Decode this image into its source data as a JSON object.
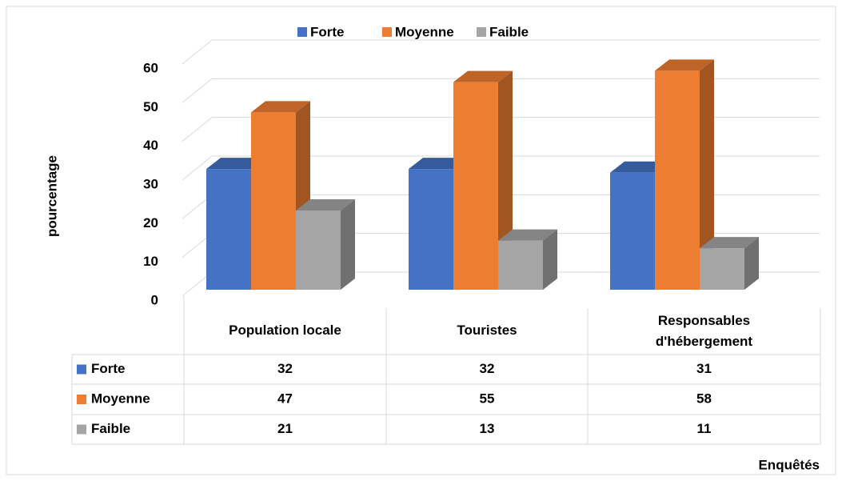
{
  "chart_data": {
    "type": "bar3d",
    "categories": [
      "Population locale",
      "Touristes",
      "Responsables d'hébergement"
    ],
    "series": [
      {
        "name": "Forte",
        "color": "#4472c4",
        "values": [
          32,
          32,
          31
        ]
      },
      {
        "name": "Moyenne",
        "color": "#ed7d31",
        "values": [
          47,
          55,
          58
        ]
      },
      {
        "name": "Faible",
        "color": "#a5a5a5",
        "values": [
          21,
          13,
          11
        ]
      }
    ],
    "ylim": [
      0,
      60
    ],
    "yticks": [
      0,
      10,
      20,
      30,
      40,
      50,
      60
    ],
    "grid": true,
    "ylabel": "pourcentage",
    "xlabel": "Enquêtés",
    "legend": "top"
  }
}
